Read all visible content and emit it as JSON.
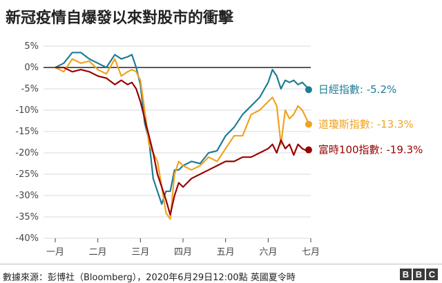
{
  "title": "新冠疫情自爆發以來對股市的衝擊",
  "source": "數據來源：彭博社（Bloomberg），2020年6月29日12:00點 英國夏令時",
  "logo_text": [
    "B",
    "B",
    "C"
  ],
  "chart_data": {
    "type": "line",
    "ylim": [
      -40,
      5
    ],
    "yticks": [
      5,
      0,
      -5,
      -10,
      -15,
      -20,
      -25,
      -30,
      -35,
      -40
    ],
    "ytick_labels": [
      "5%",
      "0%",
      "-5%",
      "-10%",
      "-15%",
      "-20%",
      "-25%",
      "-30%",
      "-35%",
      "-40%"
    ],
    "xlim": [
      0,
      6.1
    ],
    "xticks": [
      0,
      1,
      2,
      3,
      4,
      5,
      6
    ],
    "xtick_labels": [
      "一月",
      "二月",
      "三月",
      "四月",
      "五月",
      "六月",
      "七月"
    ],
    "grid": true,
    "legend": "direct-labels-right",
    "series": [
      {
        "name": "日經指數",
        "label": "日經指數: -5.2%",
        "color": "#1d7c96",
        "final": -5.2,
        "x": [
          0,
          0.2,
          0.4,
          0.6,
          0.8,
          1.0,
          1.2,
          1.4,
          1.55,
          1.7,
          1.8,
          1.9,
          2.0,
          2.1,
          2.2,
          2.3,
          2.4,
          2.5,
          2.6,
          2.7,
          2.8,
          2.9,
          3.0,
          3.2,
          3.4,
          3.6,
          3.8,
          4.0,
          4.2,
          4.4,
          4.6,
          4.8,
          5.0,
          5.1,
          5.2,
          5.3,
          5.4,
          5.5,
          5.6,
          5.7,
          5.8,
          5.9,
          5.95
        ],
        "values": [
          0,
          1,
          3.5,
          3.5,
          2,
          1,
          0,
          3,
          2,
          2.5,
          3,
          0,
          -4,
          -13,
          -17,
          -26,
          -29,
          -32,
          -29,
          -29,
          -24,
          -24,
          -23,
          -22,
          -22.5,
          -20,
          -19.5,
          -16,
          -14,
          -11,
          -9,
          -7,
          -3.5,
          -0.5,
          -2,
          -5,
          -3,
          -3.5,
          -3,
          -4,
          -3.5,
          -4.5,
          -5.2
        ]
      },
      {
        "name": "道瓊斯指數",
        "label": "道瓊斯指數: -13.3%",
        "color": "#f0a21f",
        "final": -13.3,
        "x": [
          0,
          0.2,
          0.4,
          0.6,
          0.8,
          1.0,
          1.2,
          1.4,
          1.55,
          1.7,
          1.8,
          1.9,
          2.0,
          2.1,
          2.2,
          2.3,
          2.4,
          2.5,
          2.6,
          2.7,
          2.8,
          2.9,
          3.0,
          3.2,
          3.4,
          3.6,
          3.8,
          4.0,
          4.2,
          4.4,
          4.6,
          4.8,
          5.0,
          5.1,
          5.2,
          5.3,
          5.4,
          5.5,
          5.6,
          5.7,
          5.8,
          5.9,
          5.95
        ],
        "values": [
          0,
          -1,
          2,
          1,
          1.5,
          -0.5,
          -1.5,
          2,
          -2,
          -1,
          -0.5,
          -1,
          -3,
          -10,
          -18,
          -20,
          -22,
          -28,
          -34,
          -35.5,
          -25,
          -22,
          -23,
          -24,
          -23,
          -21,
          -22,
          -19,
          -16,
          -16,
          -11,
          -10,
          -8,
          -7,
          -9,
          -18,
          -10,
          -12,
          -11,
          -9,
          -10,
          -12,
          -13.3
        ]
      },
      {
        "name": "富時100指數",
        "label": "富時100指數: -19.3%",
        "color": "#990000",
        "final": -19.3,
        "x": [
          0,
          0.2,
          0.4,
          0.6,
          0.8,
          1.0,
          1.2,
          1.4,
          1.55,
          1.7,
          1.8,
          1.9,
          2.0,
          2.1,
          2.2,
          2.3,
          2.4,
          2.5,
          2.6,
          2.7,
          2.8,
          2.9,
          3.0,
          3.2,
          3.4,
          3.6,
          3.8,
          4.0,
          4.2,
          4.4,
          4.6,
          4.8,
          5.0,
          5.1,
          5.2,
          5.3,
          5.4,
          5.5,
          5.6,
          5.7,
          5.8,
          5.9,
          5.95
        ],
        "values": [
          0,
          0,
          -1,
          -0.5,
          -1,
          -2,
          -2.5,
          -4,
          -3,
          -4,
          -3.5,
          -5,
          -8,
          -12,
          -16,
          -20,
          -25,
          -28,
          -31,
          -34.5,
          -30,
          -27,
          -28,
          -26,
          -25,
          -24,
          -23,
          -22,
          -22,
          -21,
          -21,
          -20,
          -19,
          -18,
          -20,
          -17,
          -19,
          -18,
          -20.5,
          -18,
          -19,
          -19.5,
          -19.3
        ]
      }
    ]
  }
}
